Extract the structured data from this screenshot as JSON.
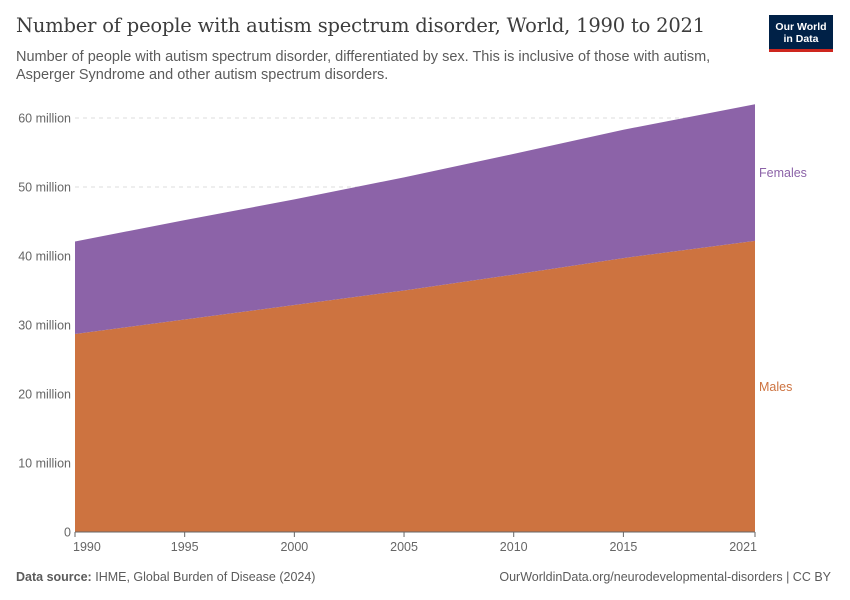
{
  "header": {
    "title": "Number of people with autism spectrum disorder, World, 1990 to 2021",
    "subtitle": "Number of people with autism spectrum disorder, differentiated by sex. This is inclusive of those with autism, Asperger Syndrome and other autism spectrum disorders."
  },
  "logo": {
    "line1": "Our World",
    "line2": "in Data",
    "bg_color": "#002147",
    "accent_color": "#ce261e"
  },
  "chart_data": {
    "type": "area",
    "stacked": true,
    "title": "Number of people with autism spectrum disorder, World, 1990 to 2021",
    "x": [
      1990,
      1995,
      2000,
      2005,
      2010,
      2015,
      2021
    ],
    "xticks": [
      "1990",
      "1995",
      "2000",
      "2005",
      "2010",
      "2015",
      "2021"
    ],
    "yticks": [
      "0",
      "10 million",
      "20 million",
      "30 million",
      "40 million",
      "50 million",
      "60 million"
    ],
    "ylim": [
      0,
      60000000
    ],
    "grid": "horizontal dashed",
    "series": [
      {
        "name": "Males",
        "color": "#cd7340",
        "values": [
          28700000,
          30800000,
          32900000,
          35000000,
          37300000,
          39700000,
          42200000
        ]
      },
      {
        "name": "Females",
        "color": "#8c63a8",
        "values": [
          13400000,
          14400000,
          15300000,
          16400000,
          17500000,
          18600000,
          19800000
        ]
      }
    ],
    "legend": "right, inline labels"
  },
  "footer": {
    "source_label": "Data source:",
    "source_text": "IHME, Global Burden of Disease (2024)",
    "url_text": "OurWorldinData.org/neurodevelopmental-disorders | CC BY"
  }
}
